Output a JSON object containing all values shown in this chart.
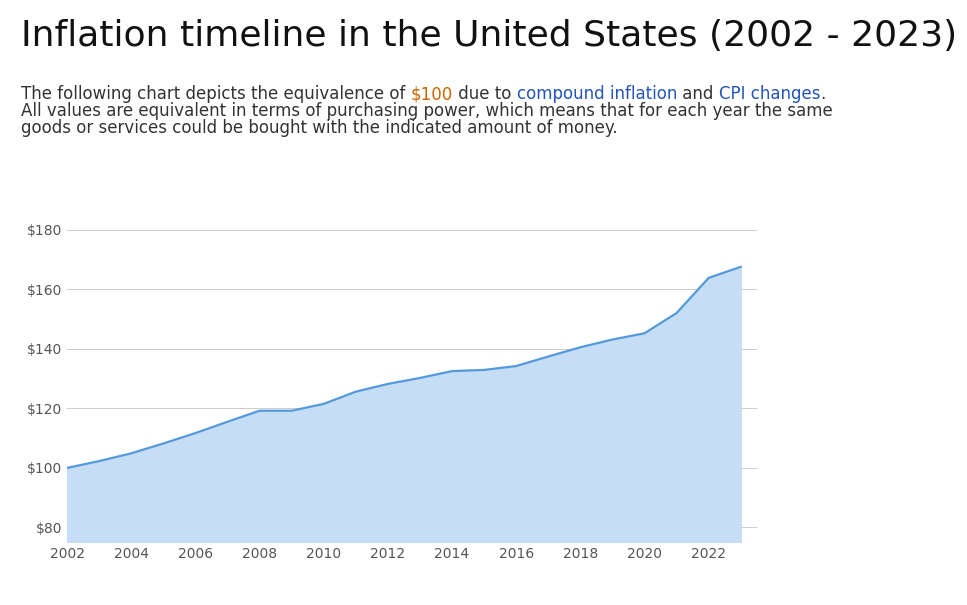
{
  "title": "Inflation timeline in the United States (2002 - 2023)",
  "subtitle_parts": [
    [
      "The following chart depicts the equivalence of ",
      "#333333"
    ],
    [
      "$100",
      "#cc6600"
    ],
    [
      " due to ",
      "#333333"
    ],
    [
      "compound inflation",
      "#2255bb"
    ],
    [
      " and ",
      "#333333"
    ],
    [
      "CPI changes",
      "#2255bb"
    ],
    [
      ".",
      "#333333"
    ]
  ],
  "subtitle_line2": "All values are equivalent in terms of purchasing power, which means that for each year the same",
  "subtitle_line3": "goods or services could be bought with the indicated amount of money.",
  "years": [
    2002,
    2003,
    2004,
    2005,
    2006,
    2007,
    2008,
    2009,
    2010,
    2011,
    2012,
    2013,
    2014,
    2015,
    2016,
    2017,
    2018,
    2019,
    2020,
    2021,
    2022,
    2023
  ],
  "values": [
    100.0,
    102.3,
    104.9,
    108.2,
    111.7,
    115.5,
    119.2,
    119.2,
    121.5,
    125.6,
    128.2,
    130.2,
    132.5,
    132.9,
    134.2,
    137.4,
    140.5,
    143.1,
    145.2,
    152.0,
    163.8,
    167.5
  ],
  "line_color": "#5599dd",
  "fill_color": "#c5ddf5",
  "bg_color": "#ffffff",
  "grid_color": "#cccccc",
  "ytick_labels": [
    "$80",
    "$100",
    "$120",
    "$140",
    "$160",
    "$180"
  ],
  "ytick_values": [
    80,
    100,
    120,
    140,
    160,
    180
  ],
  "ylim": [
    75,
    185
  ],
  "xlim_min": 2002,
  "xlim_max": 2023.5,
  "xtick_years": [
    2002,
    2004,
    2006,
    2008,
    2010,
    2012,
    2014,
    2016,
    2018,
    2020,
    2022
  ],
  "title_fontsize": 26,
  "subtitle_fontsize": 12,
  "tick_fontsize": 10,
  "tick_color": "#555555",
  "title_color": "#111111",
  "text_color": "#333333"
}
